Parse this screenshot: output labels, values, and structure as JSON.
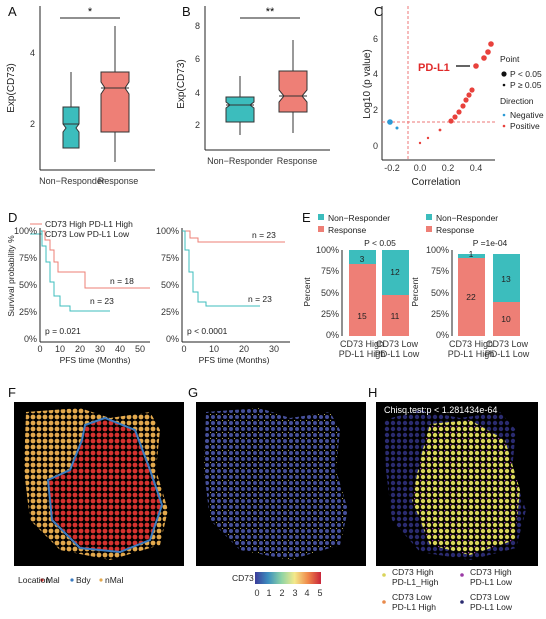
{
  "colors": {
    "teal": "#3cbdbd",
    "salmon": "#ee7f76",
    "red": "#e8413c",
    "blue": "#2b9ad6",
    "grey": "#444444"
  },
  "panels": {
    "A": "A",
    "B": "B",
    "C": "C",
    "D": "D",
    "E": "E",
    "F": "F",
    "G": "G",
    "H": "H"
  },
  "A": {
    "ylabel": "Exp(CD73)",
    "sig": "*",
    "cats": [
      "Non−Responder",
      "Response"
    ],
    "yticks": [
      "2",
      "4"
    ]
  },
  "B": {
    "ylabel": "Exp(CD73)",
    "sig": "**",
    "cats": [
      "Non−Responder",
      "Response"
    ],
    "yticks": [
      "2",
      "4",
      "6",
      "8"
    ]
  },
  "C": {
    "xlabel": "Correlation",
    "ylabel": "Log10 (p value)",
    "callout": "PD-L1",
    "xticks": [
      "-0.2",
      "0.0",
      "0.2",
      "0.4"
    ],
    "yticks": [
      "0",
      "2",
      "4",
      "6"
    ],
    "legend": {
      "point_title": "Point",
      "p1": "P < 0.05",
      "p2": "P ≥ 0.05",
      "dir_title": "Direction",
      "d1": "Negative",
      "d2": "Positive"
    }
  },
  "D": {
    "legend1": "CD73 High PD-L1 High",
    "legend2": "CD73 Low PD-L1 Low",
    "left": {
      "n1": "n = 18",
      "n2": "n = 23",
      "p": "p = 0.021",
      "xticks": [
        "0",
        "10",
        "20",
        "30",
        "40",
        "50"
      ]
    },
    "right": {
      "n1": "n = 23",
      "n2": "n = 23",
      "p": "p < 0.0001",
      "xticks": [
        "0",
        "10",
        "20",
        "30"
      ]
    },
    "ylabel": "Survival probability %",
    "xlabel": "PFS time (Months)",
    "yticks": [
      "0%",
      "25%",
      "50%",
      "75%",
      "100%"
    ]
  },
  "E": {
    "legend1": "Non−Responder",
    "legend2": "Response",
    "ylabel": "Percent",
    "left": {
      "p": "P < 0.05",
      "labels": [
        "3",
        "15",
        "12",
        "11"
      ]
    },
    "right": {
      "p": "P =1e-04",
      "labels": [
        "1",
        "22",
        "13",
        "10"
      ]
    },
    "cats": [
      [
        "CD73 High",
        "PD-L1 High"
      ],
      [
        "CD73 Low",
        "PD-L1 Low"
      ]
    ],
    "yticks": [
      "0%",
      "25%",
      "50%",
      "75%",
      "100%"
    ]
  },
  "F": {
    "legend_title": "Location",
    "items": [
      "Mal",
      "Bdy",
      "nMal"
    ]
  },
  "G": {
    "legend_title": "CD73",
    "ticks": [
      "0",
      "1",
      "2",
      "3",
      "4",
      "5"
    ]
  },
  "H": {
    "stat": "Chisq.test:p < 1.281434e-64",
    "legend": [
      [
        "CD73 High",
        "PD-L1_High"
      ],
      [
        "CD73 High",
        "PD-L1 Low"
      ],
      [
        "CD73 Low",
        "PD-L1 High"
      ],
      [
        "CD73 Low",
        "PD-L1 Low"
      ]
    ]
  }
}
